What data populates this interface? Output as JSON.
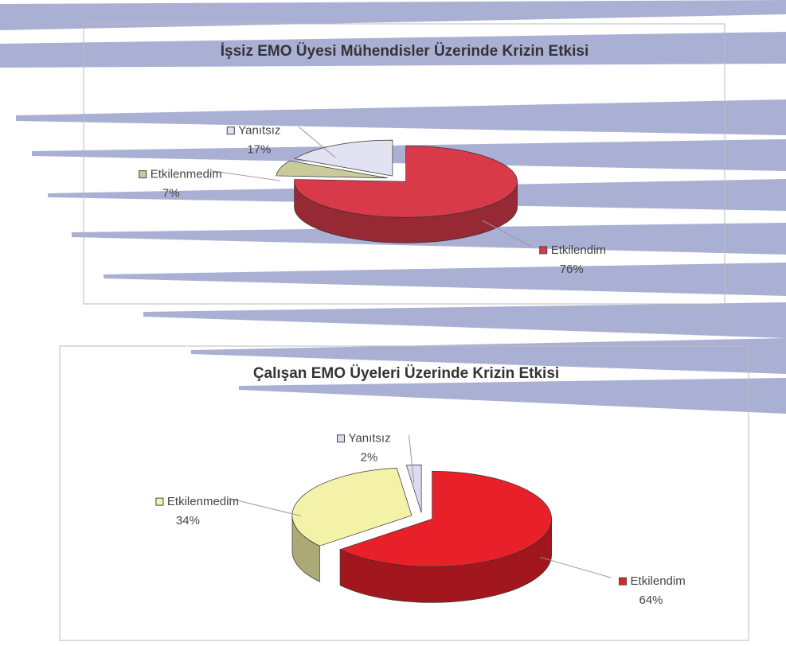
{
  "chart_data": [
    {
      "type": "pie",
      "title": "İşsiz EMO Üyesi Mühendisler Üzerinde Krizin Etkisi",
      "categories": [
        "Etkilendim",
        "Etkilenmedim",
        "Yanıtsız"
      ],
      "values": [
        76,
        7,
        17
      ],
      "value_labels": [
        "76%",
        "7%",
        "17%"
      ],
      "colors": [
        "#d83a4a",
        "#c9cc9a",
        "#e2e2f2"
      ]
    },
    {
      "type": "pie",
      "title": "Çalışan EMO Üyeleri Üzerinde Krizin Etkisi",
      "categories": [
        "Etkilendim",
        "Etkilenmedim",
        "Yanıtsız"
      ],
      "values": [
        64,
        34,
        2
      ],
      "value_labels": [
        "64%",
        "34%",
        "2%"
      ],
      "colors": [
        "#e8202a",
        "#f4f2a8",
        "#dcdcf0"
      ]
    }
  ]
}
